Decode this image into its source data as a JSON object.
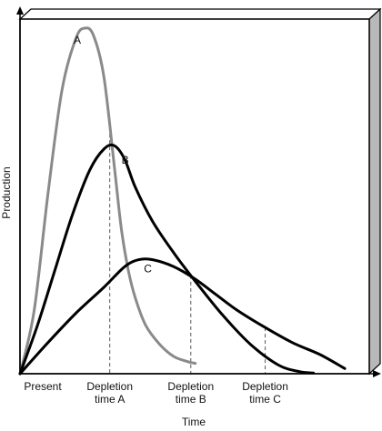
{
  "chart_data": {
    "type": "line",
    "xlabel": "Time",
    "ylabel": "Production",
    "xlim": [
      0,
      100
    ],
    "ylim": [
      0,
      100
    ],
    "grid": false,
    "legend": "none",
    "x_ticks": [
      {
        "x": 0,
        "lines": [
          "Present"
        ]
      },
      {
        "x": 25.7,
        "lines": [
          "Depletion",
          "time A"
        ]
      },
      {
        "x": 48.9,
        "lines": [
          "Depletion",
          "time B"
        ]
      },
      {
        "x": 70.2,
        "lines": [
          "Depletion",
          "time C"
        ]
      }
    ],
    "depletion_markers": [
      {
        "series": "A",
        "x": 25.7
      },
      {
        "series": "B",
        "x": 48.9
      },
      {
        "series": "C",
        "x": 70.2
      }
    ],
    "series": [
      {
        "name": "A",
        "color": "#8a8a8a",
        "x": [
          0,
          4,
          8,
          12,
          16,
          18.5,
          21,
          24,
          27,
          29,
          31,
          33,
          36,
          40,
          44,
          48,
          50.2
        ],
        "y": [
          0,
          18,
          52,
          82,
          97,
          100,
          98,
          86,
          60,
          42,
          30,
          22,
          14,
          8.5,
          5,
          3.5,
          3
        ]
      },
      {
        "name": "B",
        "color": "#000000",
        "x": [
          0,
          5,
          10,
          15,
          20,
          24,
          27,
          30,
          33,
          38,
          44,
          50,
          58,
          66,
          74,
          80,
          84
        ],
        "y": [
          0,
          14,
          30,
          46,
          59,
          65,
          66,
          62,
          54,
          44,
          35,
          27,
          17,
          8.5,
          2.5,
          0.6,
          0.2
        ]
      },
      {
        "name": "C",
        "color": "#000000",
        "x": [
          0,
          8,
          16,
          24,
          30,
          34,
          38,
          44,
          50,
          56,
          62,
          70,
          78,
          86,
          93
        ],
        "y": [
          0,
          9,
          17.5,
          25,
          31,
          33,
          33,
          31,
          27.5,
          23,
          18.5,
          13.5,
          9,
          5.5,
          1.5
        ]
      }
    ]
  }
}
